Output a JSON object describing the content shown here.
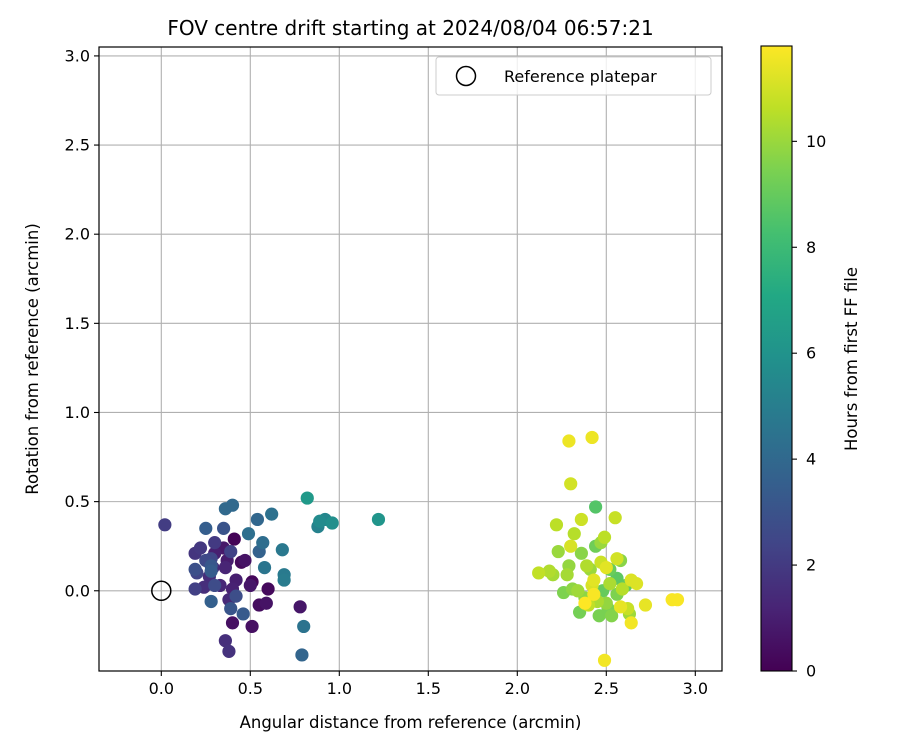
{
  "chart_data": {
    "type": "scatter",
    "title": "FOV centre drift starting at 2024/08/04 06:57:21",
    "xlabel": "Angular distance from reference (arcmin)",
    "ylabel": "Rotation from reference (arcmin)",
    "xlim": [
      -0.35,
      3.15
    ],
    "ylim": [
      -0.45,
      3.05
    ],
    "xticks": [
      0.0,
      0.5,
      1.0,
      1.5,
      2.0,
      2.5,
      3.0
    ],
    "xtick_labels": [
      "0.0",
      "0.5",
      "1.0",
      "1.5",
      "2.0",
      "2.5",
      "3.0"
    ],
    "yticks": [
      0.0,
      0.5,
      1.0,
      1.5,
      2.0,
      2.5,
      3.0
    ],
    "ytick_labels": [
      "0.0",
      "0.5",
      "1.0",
      "1.5",
      "2.0",
      "2.5",
      "3.0"
    ],
    "grid": true,
    "legend": {
      "position": "top-right",
      "entries": [
        "Reference platepar"
      ]
    },
    "reference_point": {
      "x": 0.0,
      "y": 0.0,
      "name": "Reference platepar"
    },
    "colorbar": {
      "label": "Hours from first FF file",
      "colormap": "viridis",
      "range": [
        0,
        11.8
      ],
      "ticks": [
        0,
        2,
        4,
        6,
        8,
        10
      ],
      "tick_labels": [
        "0",
        "2",
        "4",
        "6",
        "8",
        "10"
      ]
    },
    "points": [
      {
        "x": 0.41,
        "y": 0.29,
        "hours": 0.1
      },
      {
        "x": 0.51,
        "y": 0.05,
        "hours": 0.2
      },
      {
        "x": 0.6,
        "y": 0.01,
        "hours": 0.3
      },
      {
        "x": 0.45,
        "y": 0.16,
        "hours": 0.3
      },
      {
        "x": 0.55,
        "y": -0.08,
        "hours": 0.4
      },
      {
        "x": 0.4,
        "y": -0.18,
        "hours": 0.5
      },
      {
        "x": 0.51,
        "y": -0.2,
        "hours": 0.5
      },
      {
        "x": 0.59,
        "y": -0.07,
        "hours": 0.6
      },
      {
        "x": 0.47,
        "y": 0.17,
        "hours": 0.6
      },
      {
        "x": 0.5,
        "y": 0.03,
        "hours": 0.7
      },
      {
        "x": 0.78,
        "y": -0.09,
        "hours": 0.7
      },
      {
        "x": 0.35,
        "y": 0.24,
        "hours": 0.8
      },
      {
        "x": 0.37,
        "y": 0.17,
        "hours": 0.9
      },
      {
        "x": 0.42,
        "y": 0.06,
        "hours": 1.0
      },
      {
        "x": 0.3,
        "y": 0.21,
        "hours": 1.0
      },
      {
        "x": 0.4,
        "y": 0.01,
        "hours": 1.1
      },
      {
        "x": 0.36,
        "y": 0.13,
        "hours": 1.2
      },
      {
        "x": 0.33,
        "y": 0.03,
        "hours": 1.3
      },
      {
        "x": 0.38,
        "y": -0.05,
        "hours": 1.4
      },
      {
        "x": 0.29,
        "y": 0.13,
        "hours": 1.4
      },
      {
        "x": 0.27,
        "y": 0.08,
        "hours": 1.5
      },
      {
        "x": 0.24,
        "y": 0.02,
        "hours": 1.6
      },
      {
        "x": 0.36,
        "y": -0.28,
        "hours": 1.6
      },
      {
        "x": 0.38,
        "y": -0.34,
        "hours": 1.7
      },
      {
        "x": 0.19,
        "y": 0.21,
        "hours": 1.8
      },
      {
        "x": 0.22,
        "y": 0.24,
        "hours": 1.9
      },
      {
        "x": 0.3,
        "y": 0.27,
        "hours": 2.0
      },
      {
        "x": 0.02,
        "y": 0.37,
        "hours": 2.1
      },
      {
        "x": 0.19,
        "y": 0.01,
        "hours": 2.2
      },
      {
        "x": 0.39,
        "y": 0.22,
        "hours": 2.3
      },
      {
        "x": 0.2,
        "y": 0.1,
        "hours": 2.4
      },
      {
        "x": 0.28,
        "y": 0.18,
        "hours": 2.5
      },
      {
        "x": 0.25,
        "y": 0.17,
        "hours": 2.6
      },
      {
        "x": 0.3,
        "y": 0.03,
        "hours": 2.7
      },
      {
        "x": 0.42,
        "y": -0.03,
        "hours": 2.8
      },
      {
        "x": 0.19,
        "y": 0.12,
        "hours": 2.9
      },
      {
        "x": 0.35,
        "y": 0.35,
        "hours": 3.0
      },
      {
        "x": 0.39,
        "y": -0.1,
        "hours": 3.1
      },
      {
        "x": 0.28,
        "y": 0.14,
        "hours": 3.2
      },
      {
        "x": 0.46,
        "y": -0.13,
        "hours": 3.3
      },
      {
        "x": 0.28,
        "y": 0.11,
        "hours": 3.4
      },
      {
        "x": 0.25,
        "y": 0.35,
        "hours": 3.5
      },
      {
        "x": 0.28,
        "y": -0.06,
        "hours": 3.6
      },
      {
        "x": 0.55,
        "y": 0.22,
        "hours": 3.7
      },
      {
        "x": 0.79,
        "y": -0.36,
        "hours": 3.8
      },
      {
        "x": 0.54,
        "y": 0.4,
        "hours": 3.9
      },
      {
        "x": 0.36,
        "y": 0.46,
        "hours": 4.0
      },
      {
        "x": 0.4,
        "y": 0.48,
        "hours": 4.0
      },
      {
        "x": 0.57,
        "y": 0.27,
        "hours": 4.2
      },
      {
        "x": 0.49,
        "y": 0.32,
        "hours": 4.3
      },
      {
        "x": 0.62,
        "y": 0.43,
        "hours": 4.4
      },
      {
        "x": 0.8,
        "y": -0.2,
        "hours": 4.5
      },
      {
        "x": 0.58,
        "y": 0.13,
        "hours": 4.6
      },
      {
        "x": 0.68,
        "y": 0.23,
        "hours": 4.7
      },
      {
        "x": 0.69,
        "y": 0.09,
        "hours": 4.8
      },
      {
        "x": 0.69,
        "y": 0.06,
        "hours": 4.9
      },
      {
        "x": 0.88,
        "y": 0.36,
        "hours": 5.2
      },
      {
        "x": 0.92,
        "y": 0.4,
        "hours": 5.4
      },
      {
        "x": 0.89,
        "y": 0.39,
        "hours": 5.6
      },
      {
        "x": 0.96,
        "y": 0.38,
        "hours": 5.8
      },
      {
        "x": 1.22,
        "y": 0.4,
        "hours": 6.1
      },
      {
        "x": 0.82,
        "y": 0.52,
        "hours": 6.3
      },
      {
        "x": 2.44,
        "y": 0.47,
        "hours": 8.6
      },
      {
        "x": 2.56,
        "y": 0.07,
        "hours": 8.8
      },
      {
        "x": 2.61,
        "y": 0.03,
        "hours": 8.9
      },
      {
        "x": 2.48,
        "y": 0.0,
        "hours": 9.0
      },
      {
        "x": 2.52,
        "y": 0.12,
        "hours": 9.1
      },
      {
        "x": 2.44,
        "y": 0.25,
        "hours": 9.2
      },
      {
        "x": 2.35,
        "y": -0.12,
        "hours": 9.3
      },
      {
        "x": 2.46,
        "y": -0.14,
        "hours": 9.4
      },
      {
        "x": 2.51,
        "y": -0.1,
        "hours": 9.4
      },
      {
        "x": 2.56,
        "y": -0.02,
        "hours": 9.5
      },
      {
        "x": 2.26,
        "y": -0.01,
        "hours": 9.5
      },
      {
        "x": 2.53,
        "y": -0.14,
        "hours": 9.6
      },
      {
        "x": 2.36,
        "y": 0.21,
        "hours": 9.7
      },
      {
        "x": 2.58,
        "y": 0.17,
        "hours": 9.7
      },
      {
        "x": 2.31,
        "y": 0.01,
        "hours": 9.8
      },
      {
        "x": 2.38,
        "y": -0.04,
        "hours": 9.8
      },
      {
        "x": 2.5,
        "y": -0.07,
        "hours": 9.9
      },
      {
        "x": 2.29,
        "y": 0.14,
        "hours": 9.9
      },
      {
        "x": 2.41,
        "y": 0.12,
        "hours": 10.0
      },
      {
        "x": 2.23,
        "y": 0.22,
        "hours": 10.0
      },
      {
        "x": 2.47,
        "y": 0.27,
        "hours": 10.0
      },
      {
        "x": 2.63,
        "y": -0.13,
        "hours": 10.1
      },
      {
        "x": 2.34,
        "y": 0.0,
        "hours": 10.1
      },
      {
        "x": 2.2,
        "y": 0.09,
        "hours": 10.2
      },
      {
        "x": 2.28,
        "y": 0.09,
        "hours": 10.2
      },
      {
        "x": 2.52,
        "y": 0.04,
        "hours": 10.3
      },
      {
        "x": 2.45,
        "y": -0.06,
        "hours": 10.3
      },
      {
        "x": 2.18,
        "y": 0.11,
        "hours": 10.4
      },
      {
        "x": 2.39,
        "y": 0.14,
        "hours": 10.4
      },
      {
        "x": 2.59,
        "y": 0.01,
        "hours": 10.5
      },
      {
        "x": 2.32,
        "y": 0.32,
        "hours": 10.5
      },
      {
        "x": 2.22,
        "y": 0.37,
        "hours": 10.6
      },
      {
        "x": 2.49,
        "y": 0.3,
        "hours": 10.6
      },
      {
        "x": 2.12,
        "y": 0.1,
        "hours": 10.7
      },
      {
        "x": 2.4,
        "y": -0.08,
        "hours": 10.7
      },
      {
        "x": 2.62,
        "y": -0.1,
        "hours": 10.8
      },
      {
        "x": 2.55,
        "y": 0.41,
        "hours": 10.8
      },
      {
        "x": 2.36,
        "y": 0.4,
        "hours": 10.9
      },
      {
        "x": 2.47,
        "y": 0.16,
        "hours": 10.9
      },
      {
        "x": 2.3,
        "y": 0.6,
        "hours": 11.0
      },
      {
        "x": 2.56,
        "y": 0.18,
        "hours": 11.0
      },
      {
        "x": 2.3,
        "y": 0.25,
        "hours": 11.1
      },
      {
        "x": 2.42,
        "y": 0.03,
        "hours": 11.1
      },
      {
        "x": 2.64,
        "y": 0.06,
        "hours": 11.2
      },
      {
        "x": 2.67,
        "y": 0.04,
        "hours": 11.2
      },
      {
        "x": 2.43,
        "y": 0.06,
        "hours": 11.3
      },
      {
        "x": 2.5,
        "y": 0.13,
        "hours": 11.3
      },
      {
        "x": 2.72,
        "y": -0.08,
        "hours": 11.4
      },
      {
        "x": 2.58,
        "y": -0.09,
        "hours": 11.4
      },
      {
        "x": 2.29,
        "y": 0.84,
        "hours": 11.5
      },
      {
        "x": 2.42,
        "y": 0.86,
        "hours": 11.5
      },
      {
        "x": 2.64,
        "y": -0.18,
        "hours": 11.6
      },
      {
        "x": 2.49,
        "y": -0.39,
        "hours": 11.6
      },
      {
        "x": 2.87,
        "y": -0.05,
        "hours": 11.7
      },
      {
        "x": 2.9,
        "y": -0.05,
        "hours": 11.7
      },
      {
        "x": 2.43,
        "y": -0.02,
        "hours": 11.7
      },
      {
        "x": 2.38,
        "y": -0.07,
        "hours": 11.8
      }
    ]
  }
}
